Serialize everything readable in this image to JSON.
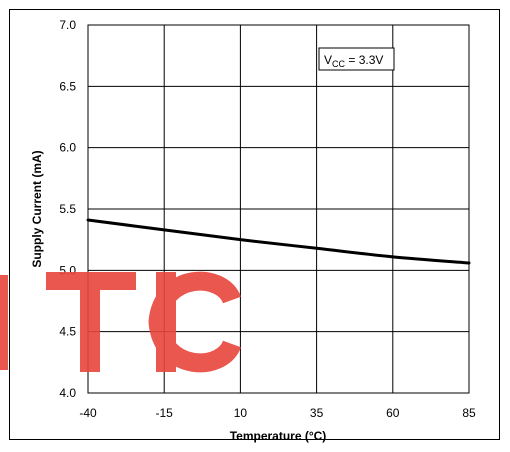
{
  "chart_data": {
    "type": "line",
    "xlabel": "Temperature (°C)",
    "ylabel": "Supply Current (mA)",
    "xlim": [
      -40,
      85
    ],
    "ylim": [
      4.0,
      7.0
    ],
    "x_ticks": [
      -40,
      -15,
      10,
      35,
      60,
      85
    ],
    "y_ticks": [
      4.0,
      4.5,
      5.0,
      5.5,
      6.0,
      6.5,
      7.0
    ],
    "x_tick_labels": [
      "-40",
      "-15",
      "10",
      "35",
      "60",
      "85"
    ],
    "y_tick_labels": [
      "4.0",
      "4.5",
      "5.0",
      "5.5",
      "6.0",
      "6.5",
      "7.0"
    ],
    "grid": true,
    "series": [
      {
        "x": [
          -40,
          -15,
          10,
          35,
          60,
          85
        ],
        "y": [
          5.41,
          5.33,
          5.25,
          5.18,
          5.11,
          5.06
        ],
        "color": "#000000"
      }
    ],
    "annotation": {
      "main": "V",
      "sub": "CC",
      "rest": " = 3.3V"
    }
  },
  "watermark": {
    "text": "TIC",
    "color": "#e8453c"
  }
}
